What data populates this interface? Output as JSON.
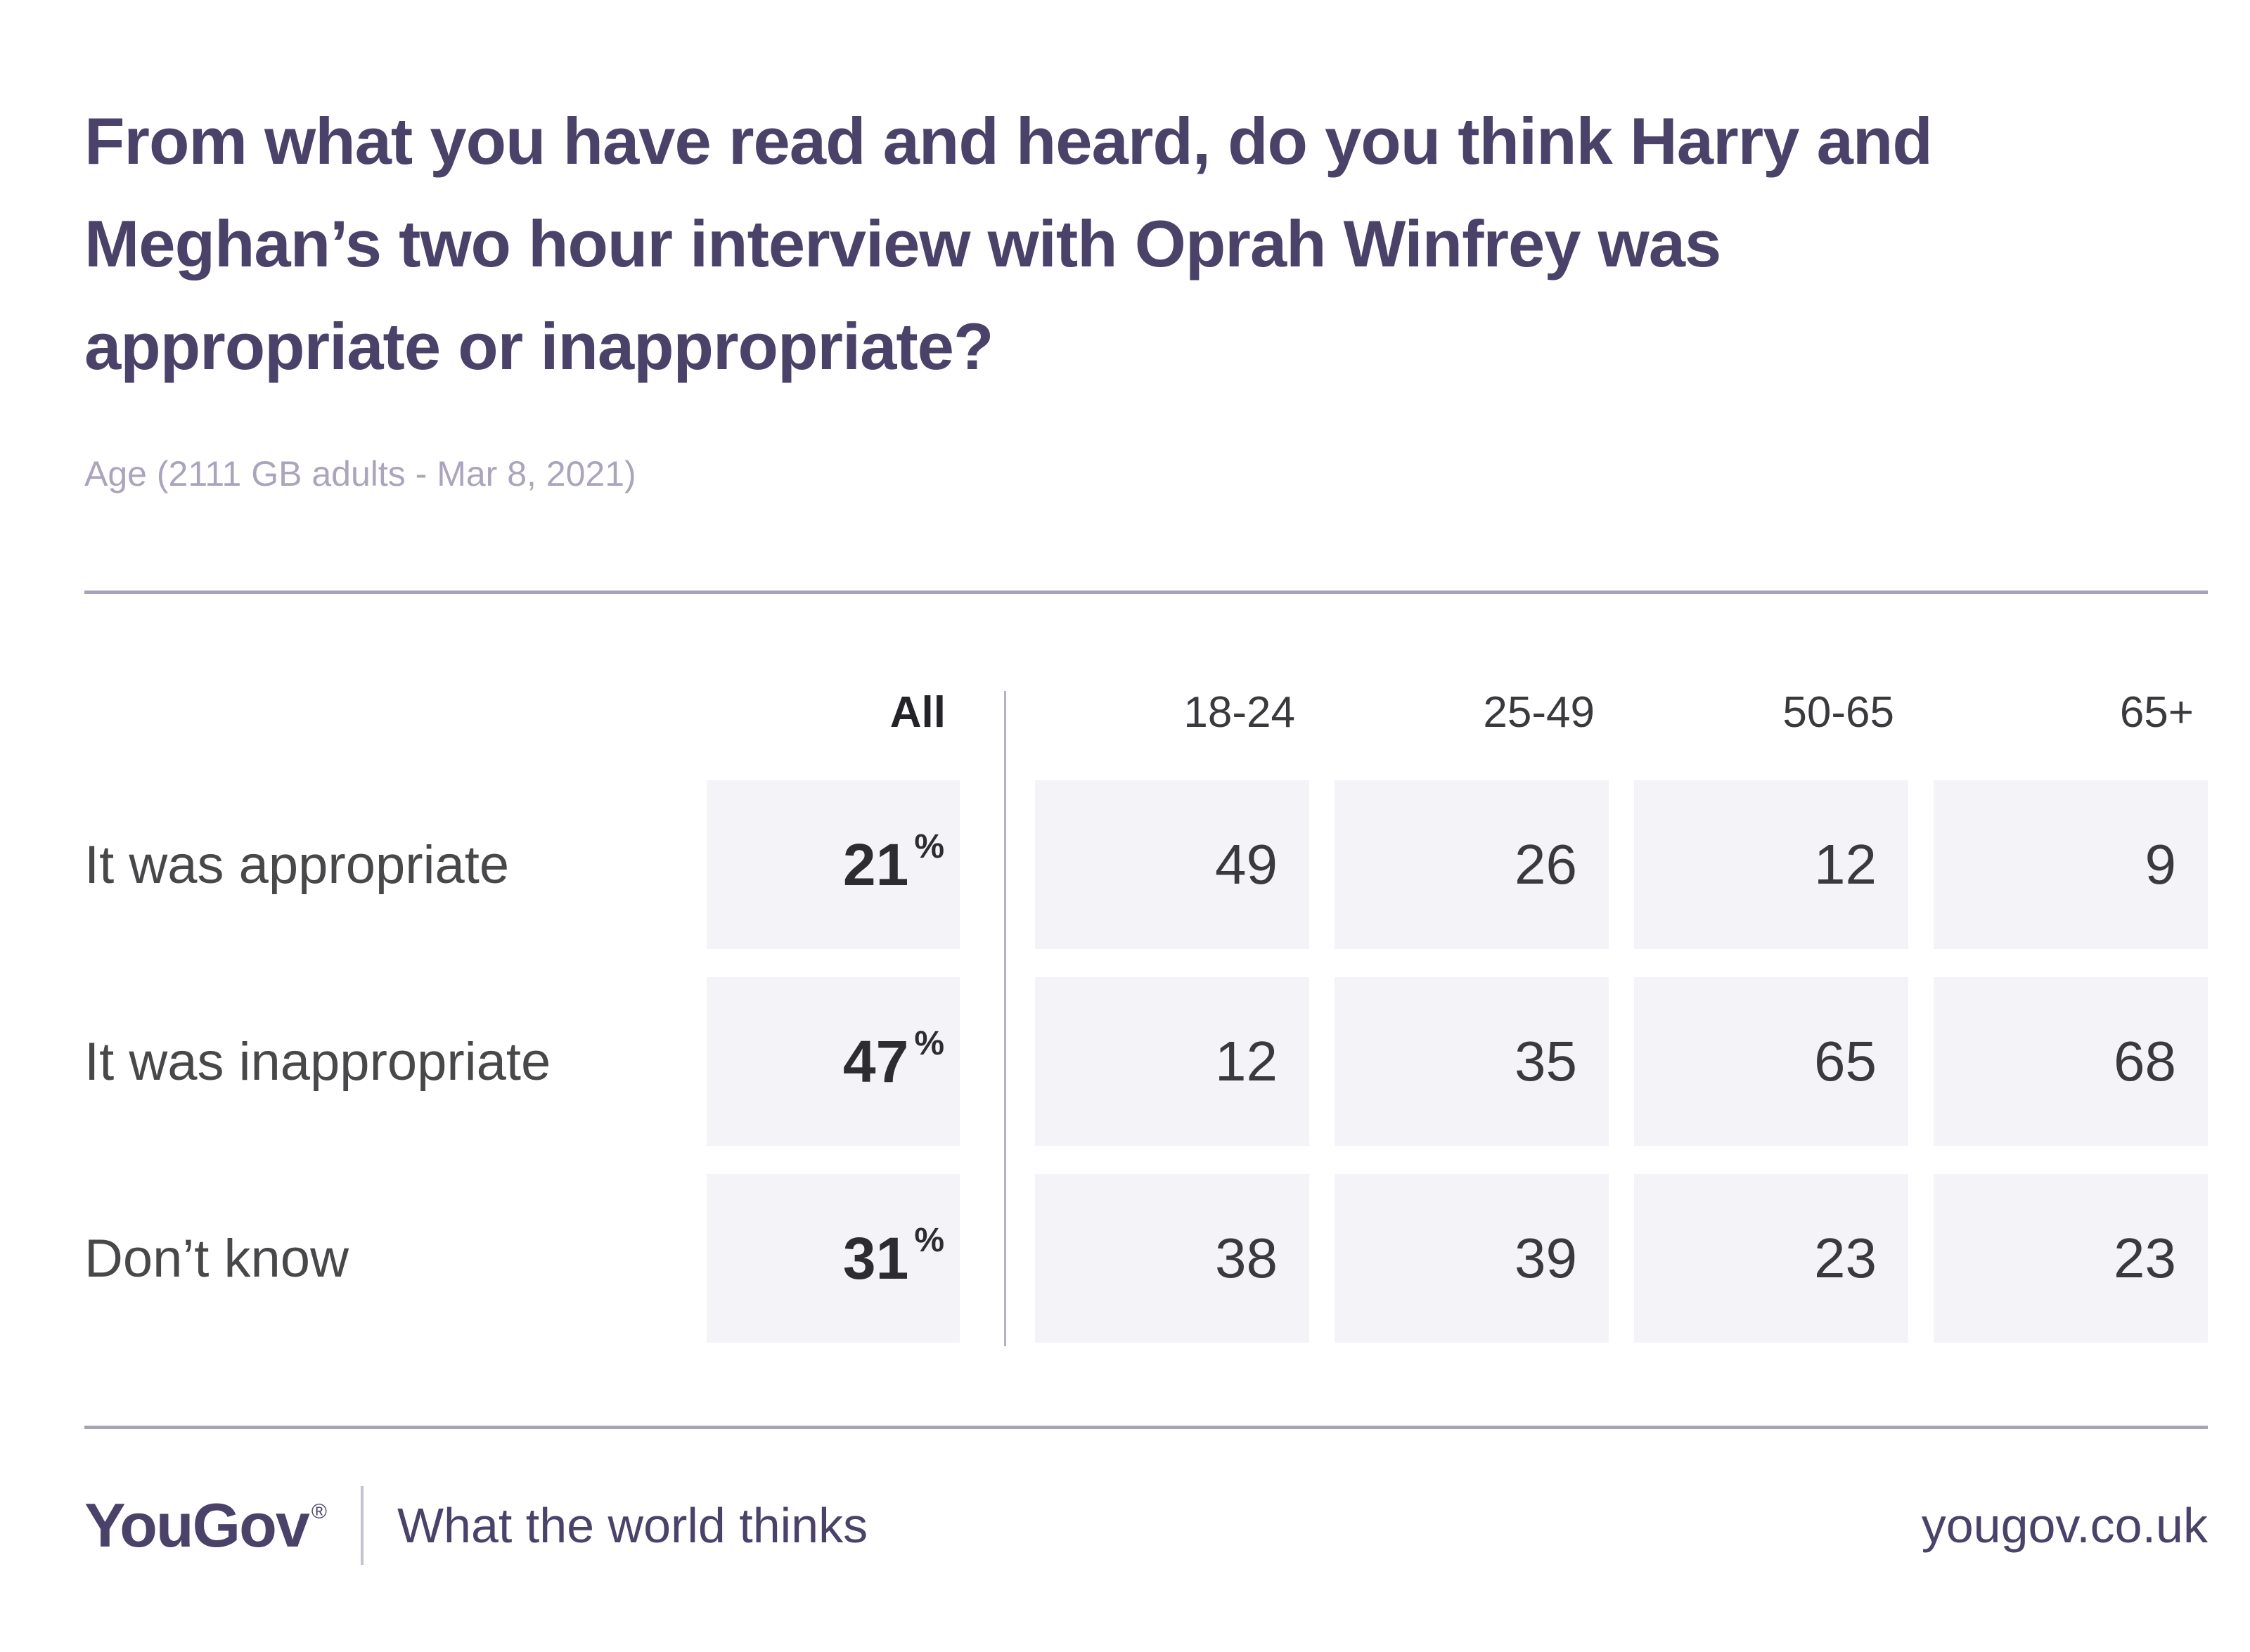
{
  "header": {
    "title_lines": [
      "From what you have read and heard, do you think Harry and",
      "Meghan’s two hour interview with Oprah Winfrey was",
      "appropriate or inappropriate?"
    ],
    "subtitle": "Age (2111 GB adults - Mar 8, 2021)"
  },
  "chart_data": {
    "type": "table",
    "title": "From what you have read and heard, do you think Harry and Meghan’s two hour interview with Oprah Winfrey was appropriate or inappropriate?",
    "subtitle": "Age (2111 GB adults - Mar 8, 2021)",
    "unit": "%",
    "columns": [
      "All",
      "18-24",
      "25-49",
      "50-65",
      "65+"
    ],
    "rows": [
      {
        "label": "It was appropriate",
        "all": 21,
        "values": [
          49,
          26,
          12,
          9
        ]
      },
      {
        "label": "It was inappropriate",
        "all": 47,
        "values": [
          12,
          35,
          65,
          68
        ]
      },
      {
        "label": "Don’t know",
        "all": 31,
        "values": [
          38,
          39,
          23,
          23
        ]
      }
    ]
  },
  "footer": {
    "logo": "YouGov",
    "registered_mark": "®",
    "tagline": "What the world thinks",
    "url": "yougov.co.uk"
  },
  "colors": {
    "brand_purple": "#4a4268",
    "subtitle_gray": "#aba4bc",
    "divider": "#a8a2b8",
    "table_divider": "#b6b0c4",
    "cell_background": "#f4f4f8",
    "number_text": "#3a393d",
    "label_text": "#484749"
  }
}
